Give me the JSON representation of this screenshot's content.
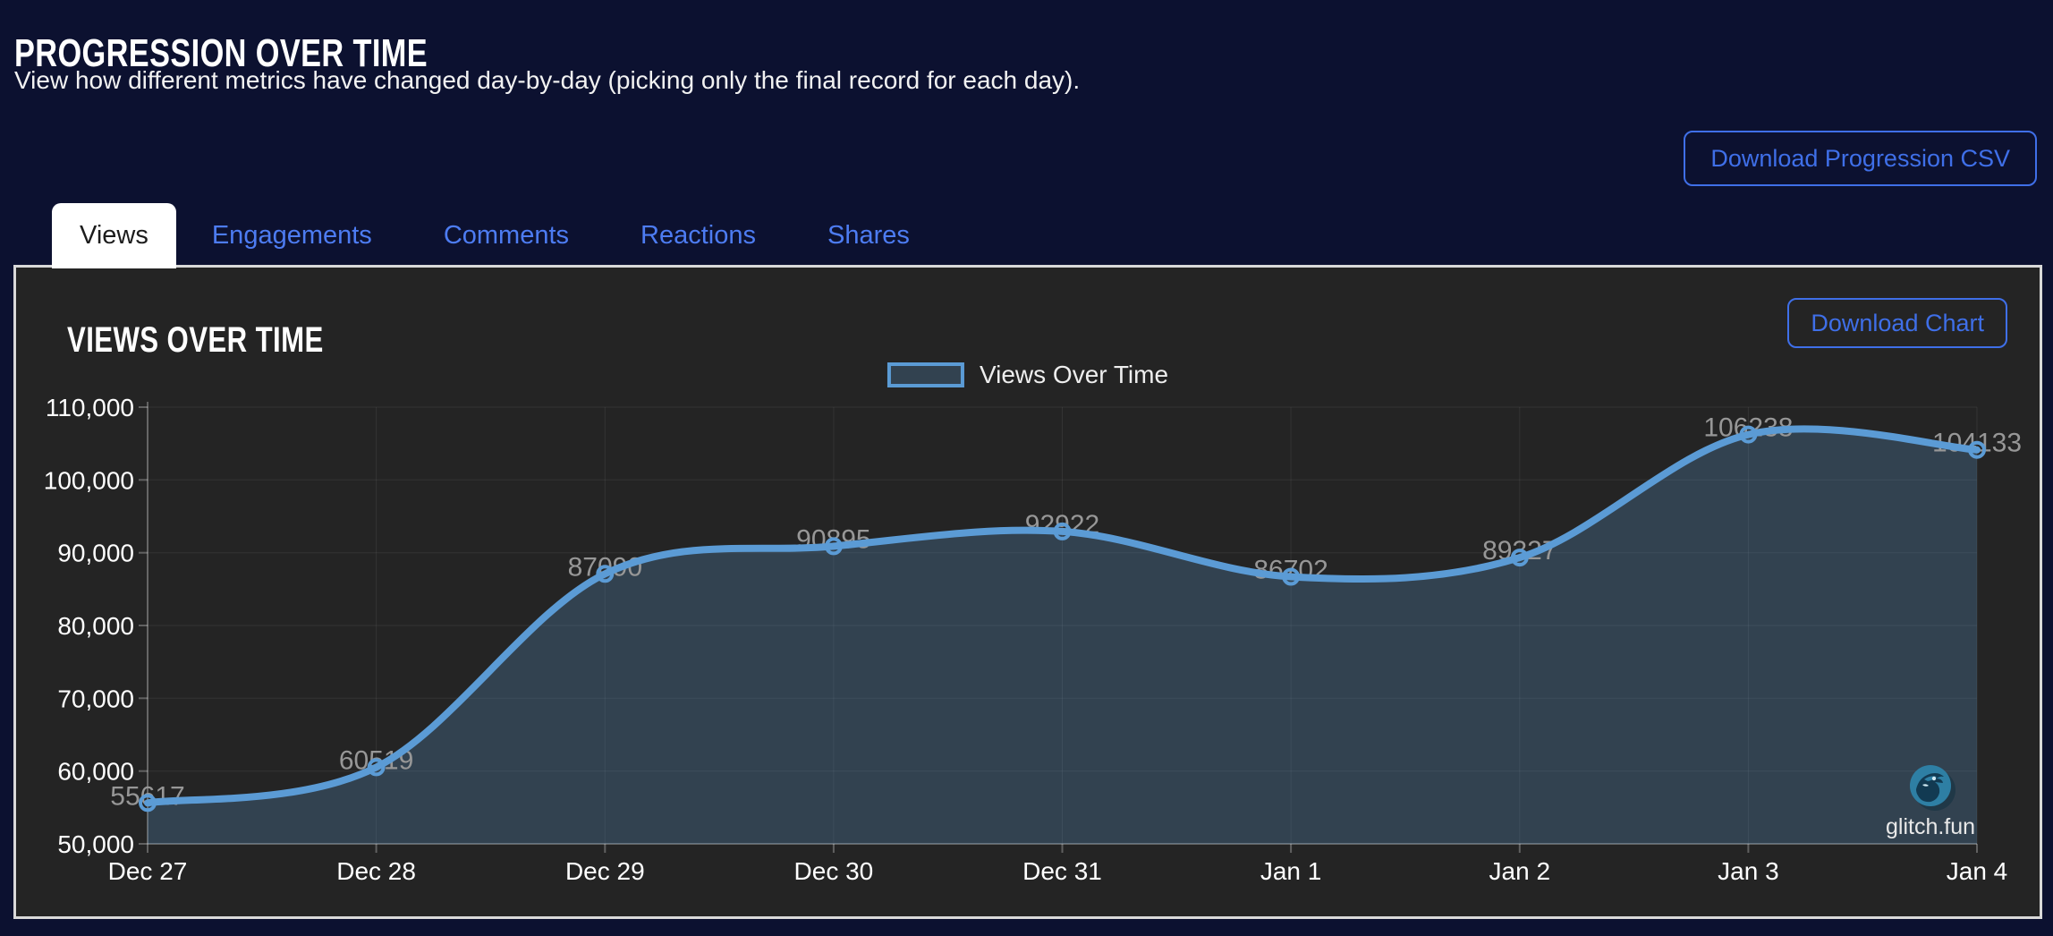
{
  "page": {
    "title": "PROGRESSION OVER TIME",
    "subtitle": "View how different metrics have changed day-by-day (picking only the final record for each day).",
    "download_csv_label": "Download Progression CSV"
  },
  "tabs": [
    {
      "label": "Views",
      "active": true
    },
    {
      "label": "Engagements",
      "active": false
    },
    {
      "label": "Comments",
      "active": false
    },
    {
      "label": "Reactions",
      "active": false
    },
    {
      "label": "Shares",
      "active": false
    }
  ],
  "panel": {
    "title": "VIEWS OVER TIME",
    "download_chart_label": "Download Chart",
    "watermark": "glitch.fun"
  },
  "colors": {
    "page_bg": "#0c1130",
    "panel_bg": "#242424",
    "panel_border": "#d9d9d9",
    "accent_blue": "#3f6fe8",
    "tab_blue": "#4d7cf2",
    "chart_line": "#5b9bd5",
    "chart_area": "rgba(91,155,213,0.25)",
    "data_label": "#979797",
    "axis_text": "#ffffff",
    "grid_line": "rgba(255,255,255,0.07)",
    "axis_line": "rgba(255,255,255,0.28)"
  },
  "chart_data": {
    "type": "line",
    "title": "Views Over Time",
    "x": [
      "Dec 27",
      "Dec 28",
      "Dec 29",
      "Dec 30",
      "Dec 31",
      "Jan 1",
      "Jan 2",
      "Jan 3",
      "Jan 4"
    ],
    "series": [
      {
        "name": "Views Over Time",
        "values": [
          55617,
          60519,
          87090,
          90895,
          92922,
          86702,
          89327,
          106238,
          104133
        ]
      }
    ],
    "ylim": [
      50000,
      110000
    ],
    "ytick_step": 10000,
    "ytick_labels": [
      "50,000",
      "60,000",
      "70,000",
      "80,000",
      "90,000",
      "100,000",
      "110,000"
    ],
    "grid": true,
    "legend_position": "top",
    "point_labels_visible": true
  }
}
